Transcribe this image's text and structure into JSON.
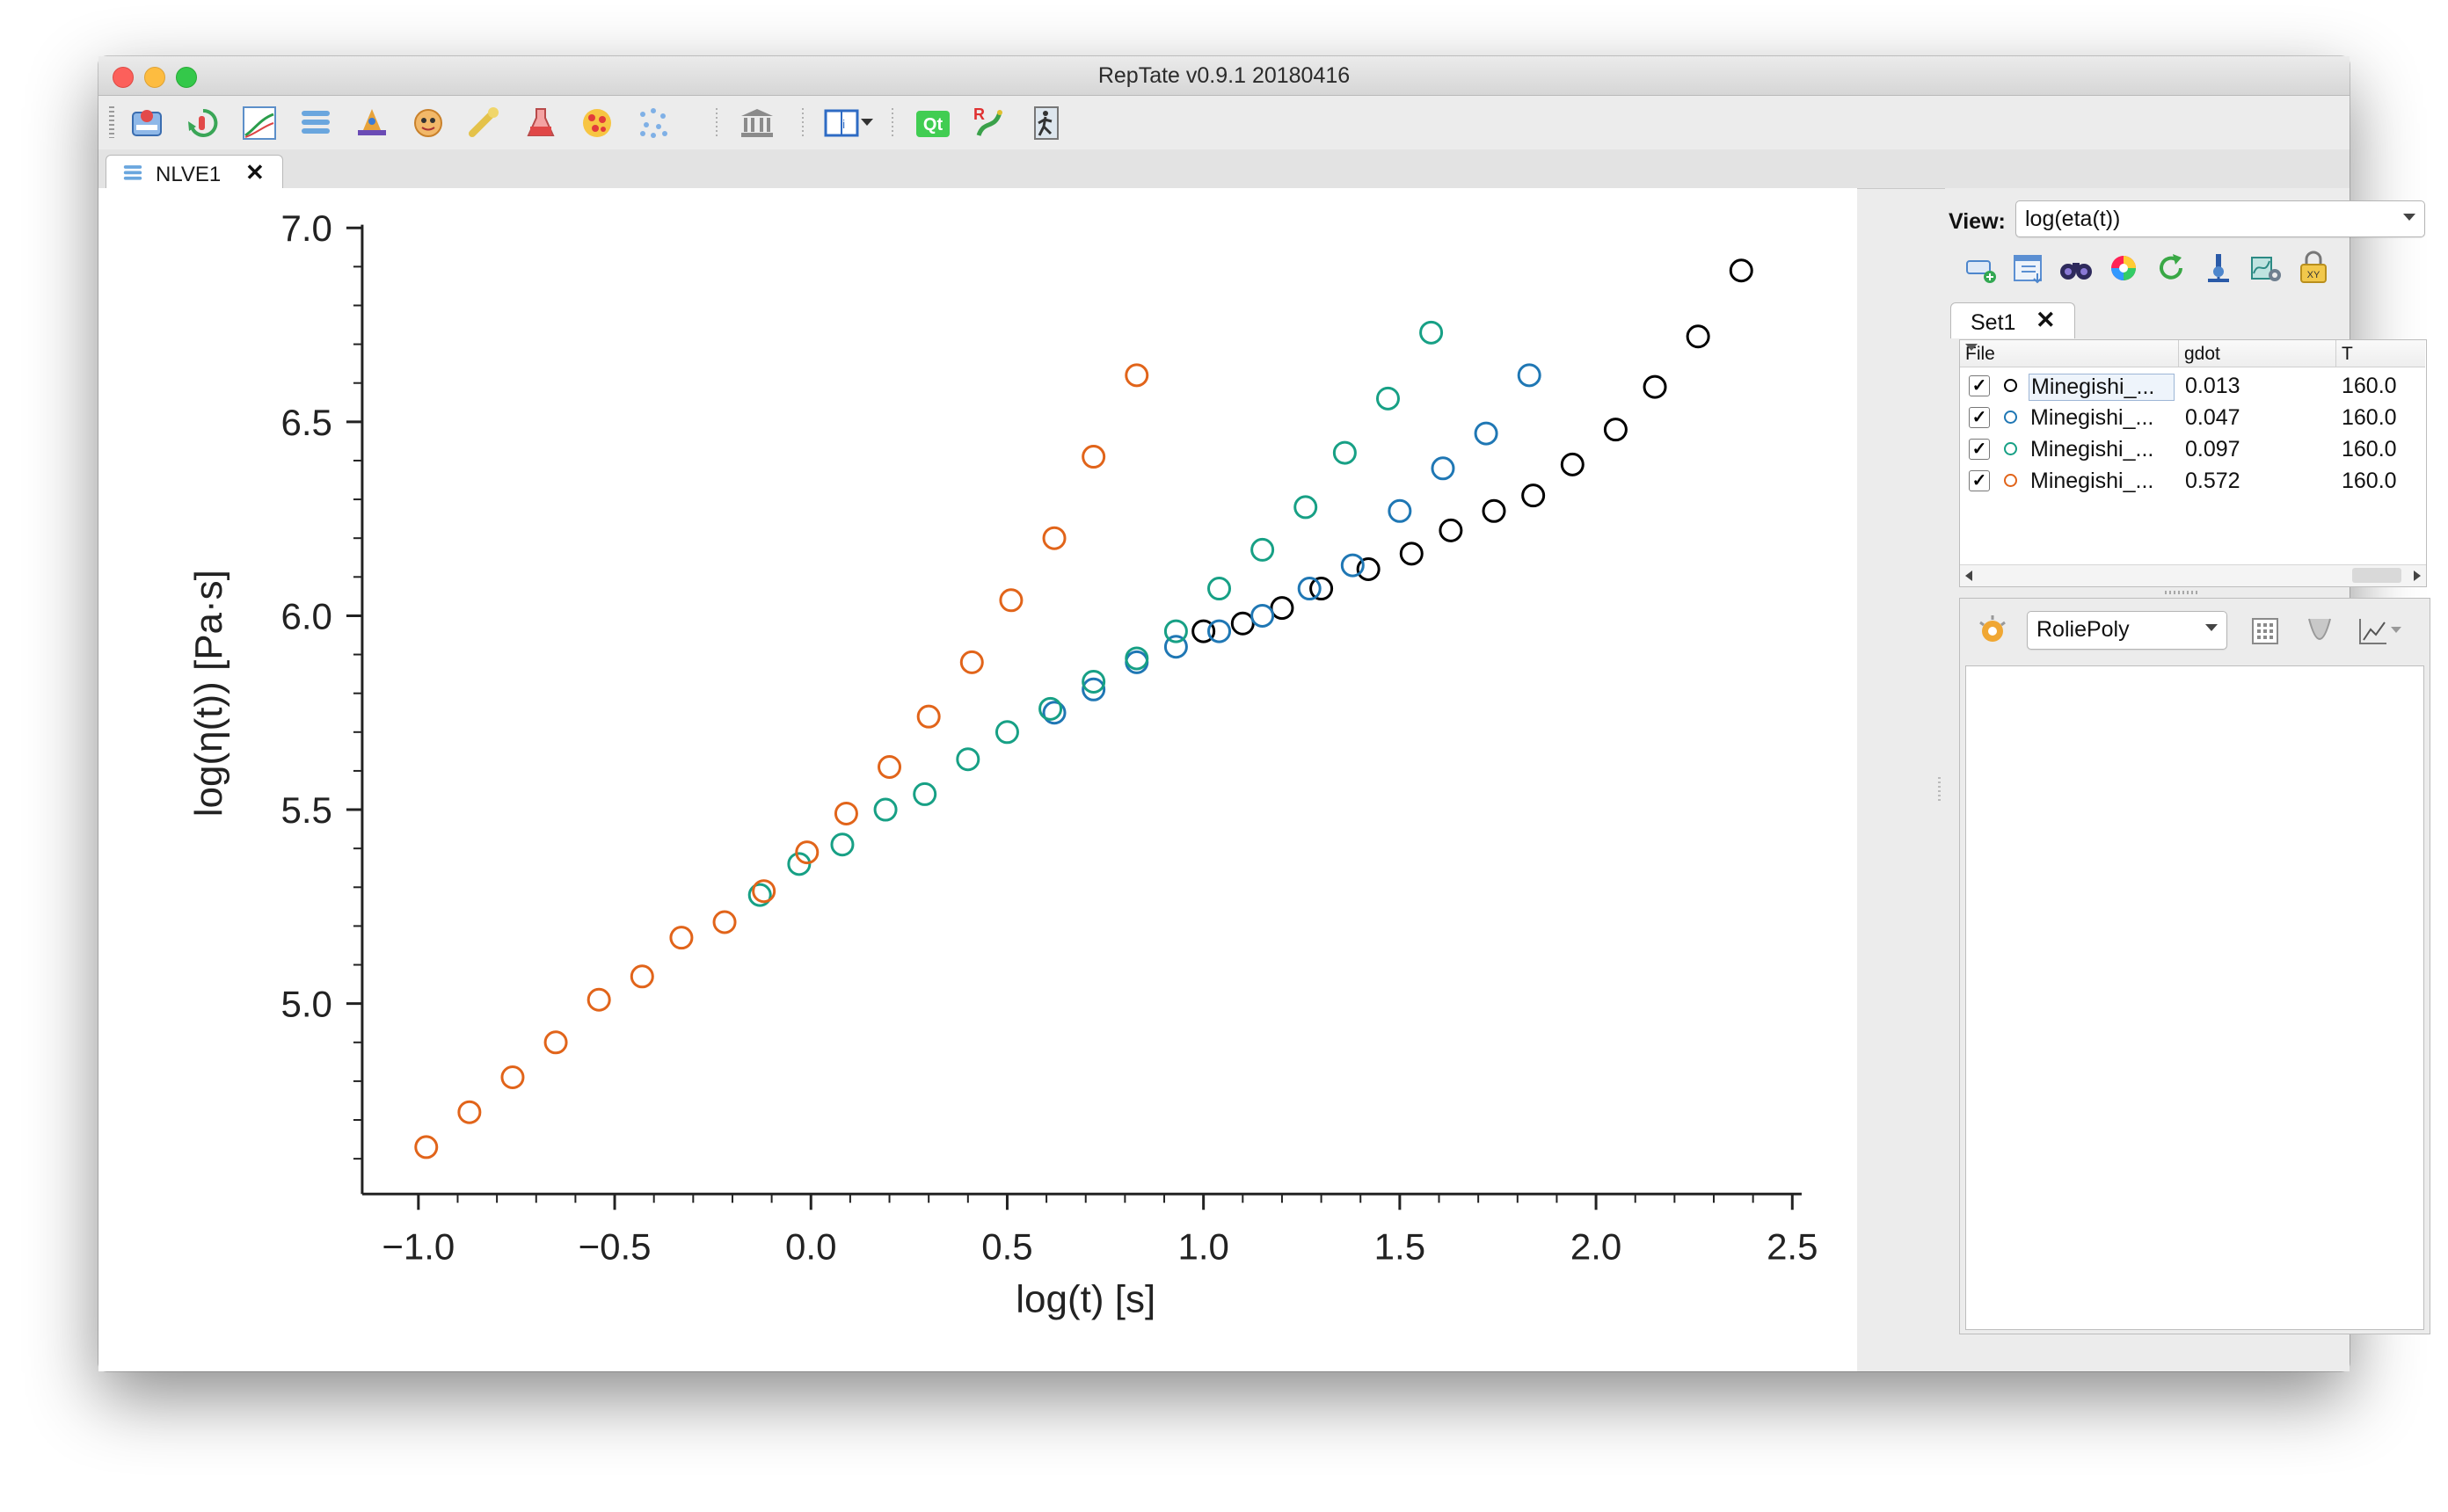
{
  "window": {
    "title": "RepTate v0.9.1 20180416"
  },
  "toolbar": {
    "buttons": [
      {
        "name": "mwd-app-icon"
      },
      {
        "name": "tts-app-icon"
      },
      {
        "name": "lve-app-icon"
      },
      {
        "name": "nlve-app-icon"
      },
      {
        "name": "crystal-app-icon"
      },
      {
        "name": "gt-app-icon"
      },
      {
        "name": "creep-app-icon"
      },
      {
        "name": "sans-app-icon"
      },
      {
        "name": "react-app-icon"
      },
      {
        "name": "dielectric-app-icon"
      },
      {
        "name": "library-icon"
      },
      {
        "name": "manual-icon"
      },
      {
        "name": "qt-icon"
      },
      {
        "name": "r-python-icon"
      },
      {
        "name": "exit-icon"
      }
    ],
    "qt_label": "Qt"
  },
  "tab": {
    "label": "NLVE1",
    "close": "✕"
  },
  "view": {
    "label": "View:",
    "value": "log(eta(t))"
  },
  "dataset_tab": {
    "label": "Set1",
    "close": "✕"
  },
  "table": {
    "headers": [
      "File",
      "gdot",
      "T"
    ],
    "rows": [
      {
        "checked": "✓",
        "file": "Minegishi_...",
        "gdot": "0.013",
        "T": "160.0",
        "color": "#000000"
      },
      {
        "checked": "✓",
        "file": "Minegishi_...",
        "gdot": "0.047",
        "T": "160.0",
        "color": "#1f77b4"
      },
      {
        "checked": "✓",
        "file": "Minegishi_...",
        "gdot": "0.097",
        "T": "160.0",
        "color": "#17a085"
      },
      {
        "checked": "✓",
        "file": "Minegishi_...",
        "gdot": "0.572",
        "T": "160.0",
        "color": "#e1641a"
      }
    ]
  },
  "theory": {
    "selected": "RoliePoly"
  },
  "chart_data": {
    "type": "scatter",
    "xlabel": "log(t) [s]",
    "ylabel": "log(η(t)) [Pa·s]",
    "xlim": [
      -1.1,
      2.55
    ],
    "ylim": [
      4.5,
      7.0
    ],
    "xticks": [
      "−1.0",
      "−0.5",
      "0.0",
      "0.5",
      "1.0",
      "1.5",
      "2.0",
      "2.5"
    ],
    "yticks": [
      "5.0",
      "5.5",
      "6.0",
      "6.5",
      "7.0"
    ],
    "series": [
      {
        "name": "gdot=0.013",
        "color": "#000000",
        "x": [
          1.0,
          1.1,
          1.2,
          1.3,
          1.42,
          1.53,
          1.63,
          1.74,
          1.84,
          1.94,
          2.05,
          2.15,
          2.26,
          2.37
        ],
        "y": [
          5.96,
          5.98,
          6.02,
          6.07,
          6.12,
          6.16,
          6.22,
          6.27,
          6.31,
          6.39,
          6.48,
          6.59,
          6.72,
          6.89
        ]
      },
      {
        "name": "gdot=0.047",
        "color": "#1f77b4",
        "x": [
          0.62,
          0.72,
          0.83,
          0.93,
          1.04,
          1.15,
          1.27,
          1.38,
          1.5,
          1.61,
          1.72,
          1.83
        ],
        "y": [
          5.75,
          5.81,
          5.88,
          5.92,
          5.96,
          6.0,
          6.07,
          6.13,
          6.27,
          6.38,
          6.47,
          6.62
        ]
      },
      {
        "name": "gdot=0.097",
        "color": "#17a085",
        "x": [
          -0.13,
          -0.03,
          0.08,
          0.19,
          0.29,
          0.4,
          0.5,
          0.61,
          0.72,
          0.83,
          0.93,
          1.04,
          1.15,
          1.26,
          1.36,
          1.47,
          1.58
        ],
        "y": [
          5.28,
          5.36,
          5.41,
          5.5,
          5.54,
          5.63,
          5.7,
          5.76,
          5.83,
          5.89,
          5.96,
          6.07,
          6.17,
          6.28,
          6.42,
          6.56,
          6.73
        ]
      },
      {
        "name": "gdot=0.572",
        "color": "#e1641a",
        "x": [
          -0.98,
          -0.87,
          -0.76,
          -0.65,
          -0.54,
          -0.43,
          -0.33,
          -0.22,
          -0.12,
          -0.01,
          0.09,
          0.2,
          0.3,
          0.41,
          0.51,
          0.62,
          0.72,
          0.83
        ],
        "y": [
          4.63,
          4.72,
          4.81,
          4.9,
          5.01,
          5.07,
          5.17,
          5.21,
          5.29,
          5.39,
          5.49,
          5.61,
          5.74,
          5.88,
          6.04,
          6.2,
          6.41,
          6.62
        ]
      }
    ]
  }
}
